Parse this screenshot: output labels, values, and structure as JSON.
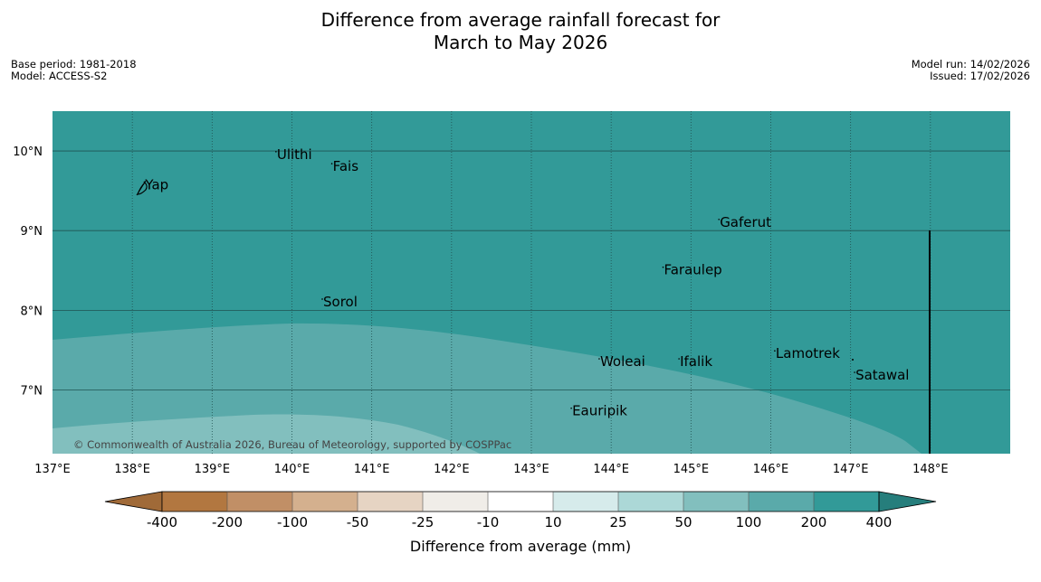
{
  "title": {
    "line1": "Difference from average rainfall forecast for",
    "line2": "March to May 2026"
  },
  "meta_left": {
    "base_period": "Base period: 1981-2018",
    "model": "Model: ACCESS-S2"
  },
  "meta_right": {
    "model_run": "Model run: 14/02/2026",
    "issued": "Issued: 17/02/2026"
  },
  "map": {
    "lon_range": [
      137,
      149
    ],
    "lat_range": [
      6.2,
      10.5
    ],
    "lon_ticks": [
      {
        "value": 137,
        "label": "137°E"
      },
      {
        "value": 138,
        "label": "138°E"
      },
      {
        "value": 139,
        "label": "139°E"
      },
      {
        "value": 140,
        "label": "140°E"
      },
      {
        "value": 141,
        "label": "141°E"
      },
      {
        "value": 142,
        "label": "142°E"
      },
      {
        "value": 143,
        "label": "143°E"
      },
      {
        "value": 144,
        "label": "144°E"
      },
      {
        "value": 145,
        "label": "145°E"
      },
      {
        "value": 146,
        "label": "146°E"
      },
      {
        "value": 147,
        "label": "147°E"
      },
      {
        "value": 148,
        "label": "148°E"
      }
    ],
    "lat_ticks": [
      {
        "value": 10,
        "label": "10°N"
      },
      {
        "value": 9,
        "label": "9°N"
      },
      {
        "value": 8,
        "label": "8°N"
      },
      {
        "value": 7,
        "label": "7°N"
      }
    ],
    "places": [
      {
        "name": "Ulithi",
        "lon": 139.8,
        "lat": 9.9
      },
      {
        "name": "Fais",
        "lon": 140.5,
        "lat": 9.75
      },
      {
        "name": "Yap",
        "lon": 138.15,
        "lat": 9.52
      },
      {
        "name": "Gaferut",
        "lon": 145.35,
        "lat": 9.05
      },
      {
        "name": "Faraulep",
        "lon": 144.65,
        "lat": 8.45
      },
      {
        "name": "Sorol",
        "lon": 140.38,
        "lat": 8.05
      },
      {
        "name": "Lamotrek",
        "lon": 146.05,
        "lat": 7.4
      },
      {
        "name": "Woleai",
        "lon": 143.85,
        "lat": 7.3
      },
      {
        "name": "Ifalik",
        "lon": 144.85,
        "lat": 7.3
      },
      {
        "name": "Satawal",
        "lon": 147.05,
        "lat": 7.13
      },
      {
        "name": "Eauripik",
        "lon": 143.5,
        "lat": 6.68
      }
    ],
    "copyright": "© Commonwealth of Australia 2026, Bureau of Meteorology, supported by COSPPac"
  },
  "colorbar": {
    "bins": [
      {
        "color": "#a06a38"
      },
      {
        "color": "#b27740"
      },
      {
        "color": "#c18f66"
      },
      {
        "color": "#d4b08e"
      },
      {
        "color": "#e6d4c3"
      },
      {
        "color": "#f0ede8"
      },
      {
        "color": "#ffffff"
      },
      {
        "color": "#d6ebeb"
      },
      {
        "color": "#acd8d7"
      },
      {
        "color": "#82bfbe"
      },
      {
        "color": "#5aaaaa"
      },
      {
        "color": "#329a98"
      },
      {
        "color": "#267e7c"
      }
    ],
    "tick_labels": [
      "-400",
      "-200",
      "-100",
      "-50",
      "-25",
      "-10",
      "10",
      "25",
      "50",
      "100",
      "200",
      "400"
    ],
    "label": "Difference from average (mm)"
  }
}
